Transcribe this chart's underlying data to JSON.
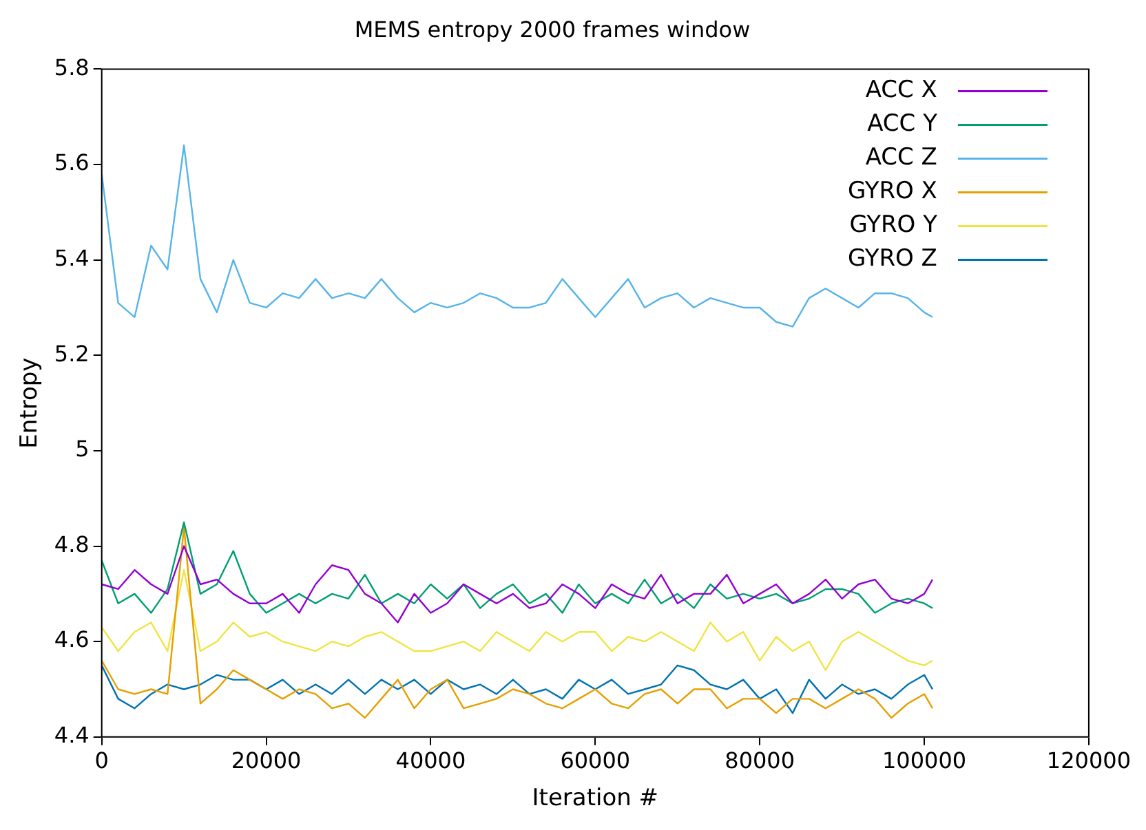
{
  "chart_data": {
    "type": "line",
    "title": "MEMS entropy 2000 frames window",
    "xlabel": "Iteration #",
    "ylabel": "Entropy",
    "x": [
      0,
      2000,
      4000,
      6000,
      8000,
      10000,
      12000,
      14000,
      16000,
      18000,
      20000,
      22000,
      24000,
      26000,
      28000,
      30000,
      32000,
      34000,
      36000,
      38000,
      40000,
      42000,
      44000,
      46000,
      48000,
      50000,
      52000,
      54000,
      56000,
      58000,
      60000,
      62000,
      64000,
      66000,
      68000,
      70000,
      72000,
      74000,
      76000,
      78000,
      80000,
      82000,
      84000,
      86000,
      88000,
      90000,
      92000,
      94000,
      96000,
      98000,
      100000,
      101000
    ],
    "series": [
      {
        "name": "ACC X",
        "color": "#9400d3",
        "values": [
          4.72,
          4.71,
          4.75,
          4.72,
          4.7,
          4.8,
          4.72,
          4.73,
          4.7,
          4.68,
          4.68,
          4.7,
          4.66,
          4.72,
          4.76,
          4.75,
          4.7,
          4.68,
          4.64,
          4.7,
          4.66,
          4.68,
          4.72,
          4.7,
          4.68,
          4.7,
          4.67,
          4.68,
          4.72,
          4.7,
          4.67,
          4.72,
          4.7,
          4.69,
          4.74,
          4.68,
          4.7,
          4.7,
          4.74,
          4.68,
          4.7,
          4.72,
          4.68,
          4.7,
          4.73,
          4.69,
          4.72,
          4.73,
          4.69,
          4.68,
          4.7,
          4.73
        ]
      },
      {
        "name": "ACC Y",
        "color": "#009e73",
        "values": [
          4.77,
          4.68,
          4.7,
          4.66,
          4.71,
          4.85,
          4.7,
          4.72,
          4.79,
          4.7,
          4.66,
          4.68,
          4.7,
          4.68,
          4.7,
          4.69,
          4.74,
          4.68,
          4.7,
          4.68,
          4.72,
          4.69,
          4.72,
          4.67,
          4.7,
          4.72,
          4.68,
          4.7,
          4.66,
          4.72,
          4.68,
          4.7,
          4.68,
          4.73,
          4.68,
          4.7,
          4.67,
          4.72,
          4.69,
          4.7,
          4.69,
          4.7,
          4.68,
          4.69,
          4.71,
          4.71,
          4.7,
          4.66,
          4.68,
          4.69,
          4.68,
          4.67
        ]
      },
      {
        "name": "ACC Z",
        "color": "#56b4e9",
        "values": [
          5.58,
          5.31,
          5.28,
          5.43,
          5.38,
          5.64,
          5.36,
          5.29,
          5.4,
          5.31,
          5.3,
          5.33,
          5.32,
          5.36,
          5.32,
          5.33,
          5.32,
          5.36,
          5.32,
          5.29,
          5.31,
          5.3,
          5.31,
          5.33,
          5.32,
          5.3,
          5.3,
          5.31,
          5.36,
          5.32,
          5.28,
          5.32,
          5.36,
          5.3,
          5.32,
          5.33,
          5.3,
          5.32,
          5.31,
          5.3,
          5.3,
          5.27,
          5.26,
          5.32,
          5.34,
          5.32,
          5.3,
          5.33,
          5.33,
          5.32,
          5.29,
          5.28
        ]
      },
      {
        "name": "GYRO X",
        "color": "#e69f00",
        "values": [
          4.56,
          4.5,
          4.49,
          4.5,
          4.49,
          4.84,
          4.47,
          4.5,
          4.54,
          4.52,
          4.5,
          4.48,
          4.5,
          4.49,
          4.46,
          4.47,
          4.44,
          4.48,
          4.52,
          4.46,
          4.5,
          4.52,
          4.46,
          4.47,
          4.48,
          4.5,
          4.49,
          4.47,
          4.46,
          4.48,
          4.5,
          4.47,
          4.46,
          4.49,
          4.5,
          4.47,
          4.5,
          4.5,
          4.46,
          4.48,
          4.48,
          4.45,
          4.48,
          4.48,
          4.46,
          4.48,
          4.5,
          4.48,
          4.44,
          4.47,
          4.49,
          4.46
        ]
      },
      {
        "name": "GYRO Y",
        "color": "#f0e442",
        "values": [
          4.63,
          4.58,
          4.62,
          4.64,
          4.58,
          4.75,
          4.58,
          4.6,
          4.64,
          4.61,
          4.62,
          4.6,
          4.59,
          4.58,
          4.6,
          4.59,
          4.61,
          4.62,
          4.6,
          4.58,
          4.58,
          4.59,
          4.6,
          4.58,
          4.62,
          4.6,
          4.58,
          4.62,
          4.6,
          4.62,
          4.62,
          4.58,
          4.61,
          4.6,
          4.62,
          4.6,
          4.58,
          4.64,
          4.6,
          4.62,
          4.56,
          4.61,
          4.58,
          4.6,
          4.54,
          4.6,
          4.62,
          4.6,
          4.58,
          4.56,
          4.55,
          4.56
        ]
      },
      {
        "name": "GYRO Z",
        "color": "#0072b2",
        "values": [
          4.55,
          4.48,
          4.46,
          4.49,
          4.51,
          4.5,
          4.51,
          4.53,
          4.52,
          4.52,
          4.5,
          4.52,
          4.49,
          4.51,
          4.49,
          4.52,
          4.49,
          4.52,
          4.5,
          4.52,
          4.49,
          4.52,
          4.5,
          4.51,
          4.49,
          4.52,
          4.49,
          4.5,
          4.48,
          4.52,
          4.5,
          4.52,
          4.49,
          4.5,
          4.51,
          4.55,
          4.54,
          4.51,
          4.5,
          4.52,
          4.48,
          4.5,
          4.45,
          4.52,
          4.48,
          4.51,
          4.49,
          4.5,
          4.48,
          4.51,
          4.53,
          4.5
        ]
      }
    ],
    "xlim": [
      0,
      120000
    ],
    "xticks": [
      0,
      20000,
      40000,
      60000,
      80000,
      100000,
      120000
    ],
    "ylim": [
      4.4,
      5.8
    ],
    "yticks": [
      4.4,
      4.6,
      4.8,
      5,
      5.2,
      5.4,
      5.6,
      5.8
    ],
    "grid": false,
    "legend": "top right",
    "marker": "none",
    "line_style": "solid"
  }
}
